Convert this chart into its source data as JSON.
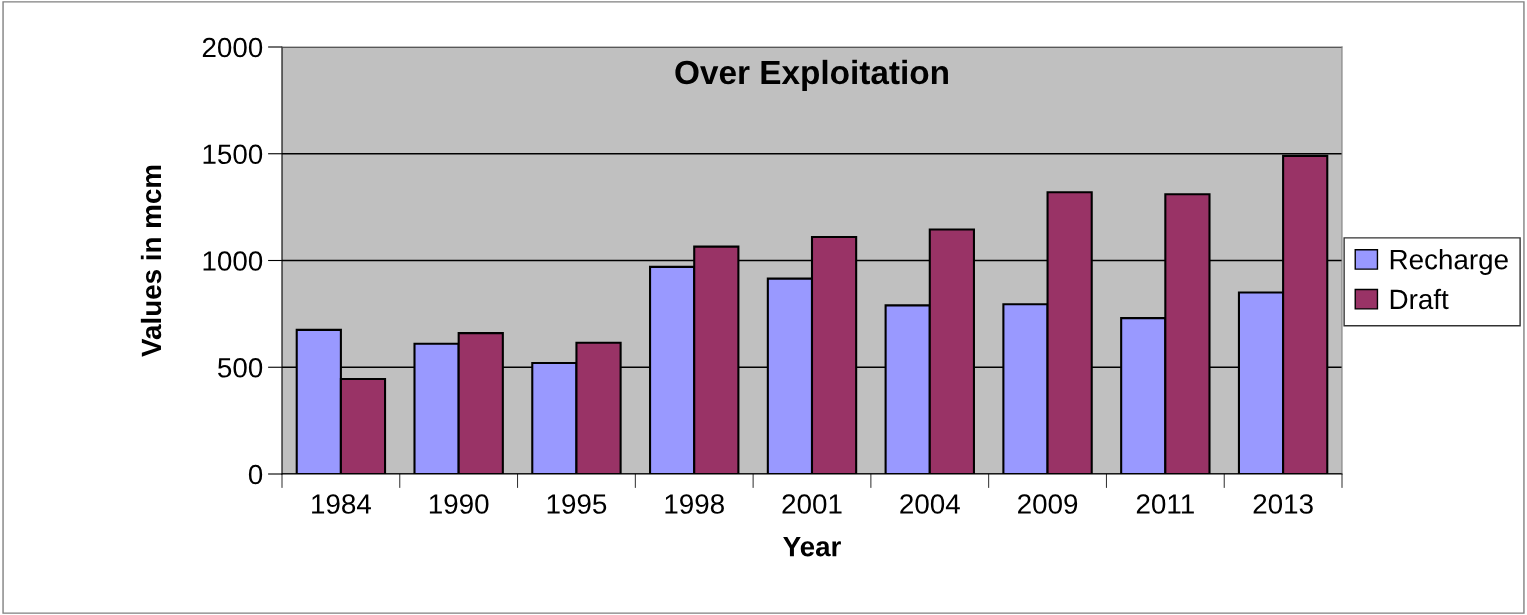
{
  "chart_data": {
    "type": "bar",
    "title": "Over Exploitation",
    "xlabel": "Year",
    "ylabel": "Values in mcm",
    "categories": [
      "1984",
      "1990",
      "1995",
      "1998",
      "2001",
      "2004",
      "2009",
      "2011",
      "2013"
    ],
    "series": [
      {
        "name": "Recharge",
        "color": "#9999ff",
        "values": [
          675,
          610,
          520,
          970,
          915,
          790,
          795,
          730,
          850
        ]
      },
      {
        "name": "Draft",
        "color": "#993366",
        "values": [
          445,
          660,
          615,
          1065,
          1110,
          1145,
          1320,
          1310,
          1490
        ]
      }
    ],
    "ylim": [
      0,
      2000
    ],
    "yticks": [
      0,
      500,
      1000,
      1500,
      2000
    ],
    "grid": "y",
    "legend": "right"
  }
}
